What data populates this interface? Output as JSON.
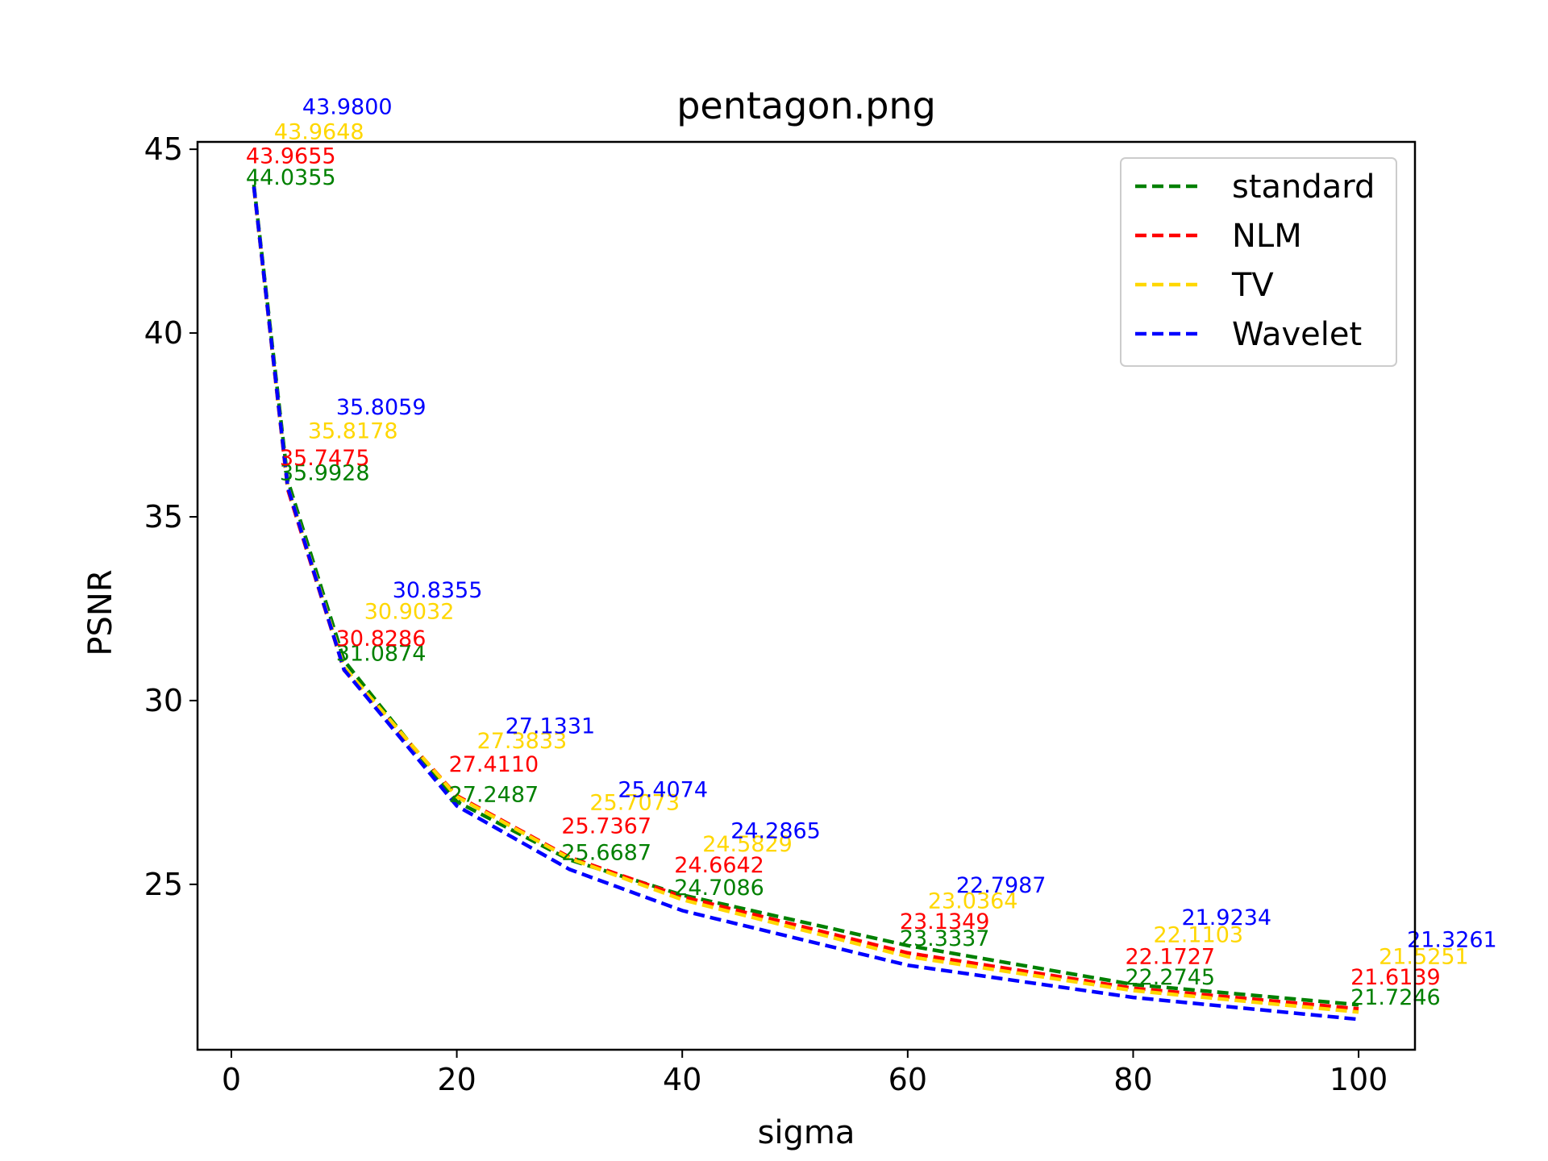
{
  "chart_data": {
    "type": "line",
    "title": "pentagon.png",
    "xlabel": "sigma",
    "ylabel": "PSNR",
    "xlim": [
      -3,
      105
    ],
    "ylim": [
      20.5,
      45.2
    ],
    "xticks": [
      0,
      20,
      40,
      60,
      80,
      100
    ],
    "yticks": [
      25,
      30,
      35,
      40,
      45
    ],
    "grid": false,
    "legend_position": "top-right",
    "x": [
      2,
      5,
      10,
      20,
      30,
      40,
      60,
      80,
      100
    ],
    "series": [
      {
        "name": "standard",
        "color": "#008000",
        "values": [
          44.0355,
          35.9928,
          31.0874,
          27.2487,
          25.6687,
          24.7086,
          23.3337,
          22.2745,
          21.7246
        ],
        "labels": [
          "44.0355",
          "35.9928",
          "31.0874",
          "27.2487",
          "25.6687",
          "24.7086",
          "23.3337",
          "22.2745",
          "21.7246"
        ]
      },
      {
        "name": "NLM",
        "color": "#ff0000",
        "values": [
          43.9655,
          35.7475,
          30.8286,
          27.411,
          25.7367,
          24.6642,
          23.1349,
          22.1727,
          21.6139
        ],
        "labels": [
          "43.9655",
          "35.7475",
          "30.8286",
          "27.4110",
          "25.7367",
          "24.6642",
          "23.1349",
          "22.1727",
          "21.6139"
        ]
      },
      {
        "name": "TV",
        "color": "#ffd700",
        "values": [
          43.9648,
          35.8178,
          30.9032,
          27.3833,
          25.7073,
          24.5829,
          23.0364,
          22.1103,
          21.5251
        ],
        "labels": [
          "43.9648",
          "35.8178",
          "30.9032",
          "27.3833",
          "25.7073",
          "24.5829",
          "23.0364",
          "22.1103",
          "21.5251"
        ]
      },
      {
        "name": "Wavelet",
        "color": "#0000ff",
        "values": [
          43.98,
          35.8059,
          30.8355,
          27.1331,
          25.4074,
          24.2865,
          22.7987,
          21.9234,
          21.3261
        ],
        "labels": [
          "43.9800",
          "35.8059",
          "30.8355",
          "27.1331",
          "25.4074",
          "24.2865",
          "22.7987",
          "21.9234",
          "21.3261"
        ]
      }
    ]
  }
}
